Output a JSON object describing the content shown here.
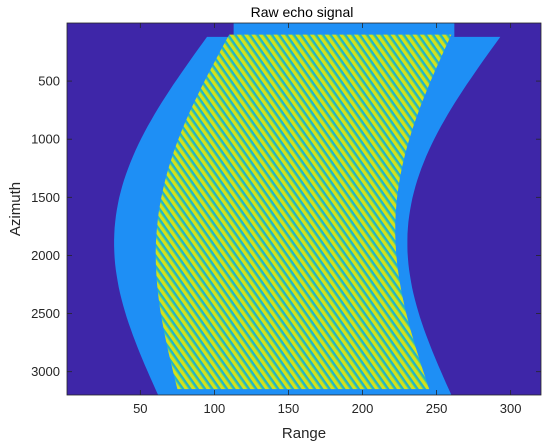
{
  "chart_data": {
    "type": "heatmap",
    "title": "Raw echo signal",
    "xlabel": "Range",
    "ylabel": "Azimuth",
    "xlim": [
      0.5,
      320.5
    ],
    "ylim": [
      0.5,
      3200.5
    ],
    "y_reversed": true,
    "x_ticks": [
      50,
      100,
      150,
      200,
      250,
      300
    ],
    "y_ticks": [
      500,
      1000,
      1500,
      2000,
      2500,
      3000
    ],
    "x_tick_labels": [
      "50",
      "100",
      "150",
      "200",
      "250",
      "300"
    ],
    "y_tick_labels": [
      "500",
      "1000",
      "1500",
      "2000",
      "2500",
      "3000"
    ],
    "colormap": "parula",
    "colors": {
      "background": "#3e26a8",
      "footprint": "#1e8ff5",
      "fringe_light": "#d4e21a",
      "fringe_dark": "#21b5c6",
      "fringe_mid": "#6fd06d"
    },
    "footprint_regions": [
      {
        "name": "aperture-top",
        "azimuth": [
          0.5,
          120
        ],
        "range": [
          113,
          262
        ]
      },
      {
        "name": "aperture-main",
        "azimuth": [
          120,
          3200.5
        ],
        "range_left_at_top": 95,
        "range_left_at_bottom": 62,
        "range_width": 198,
        "curvature_offset": -45
      }
    ],
    "fringe_band": {
      "azimuth": [
        100,
        3150
      ],
      "range_left_at_top": 110,
      "range_right_at_top": 260,
      "range_left_at_bottom": 75,
      "range_right_at_bottom": 245,
      "fringe_period": 4
    }
  }
}
